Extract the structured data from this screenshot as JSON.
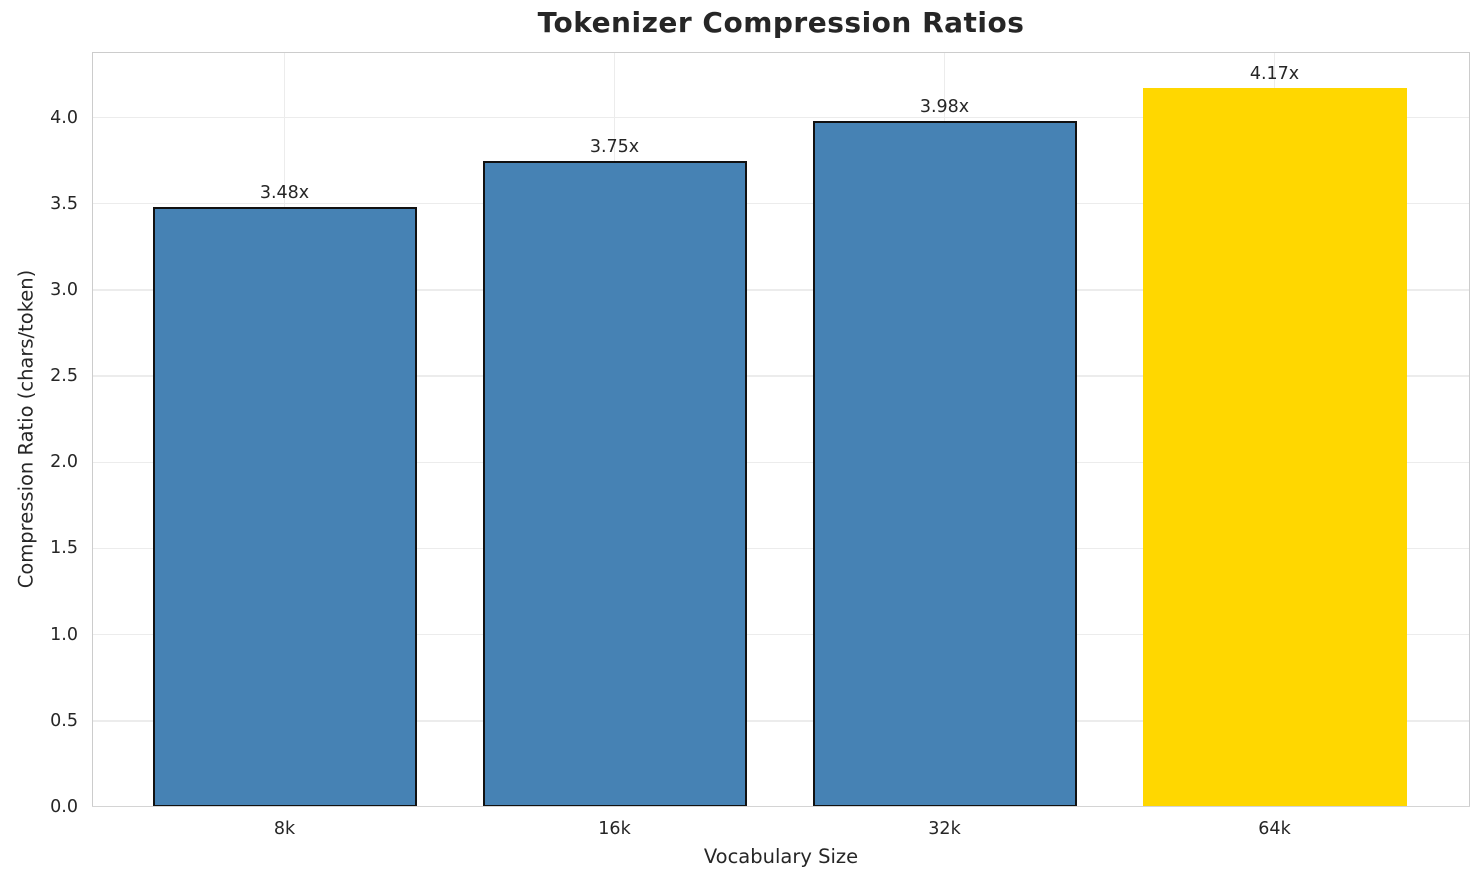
{
  "chart_data": {
    "type": "bar",
    "title": "Tokenizer Compression Ratios",
    "xlabel": "Vocabulary Size",
    "ylabel": "Compression Ratio (chars/token)",
    "categories": [
      "8k",
      "16k",
      "32k",
      "64k"
    ],
    "values": [
      3.48,
      3.75,
      3.98,
      4.17
    ],
    "bar_labels": [
      "3.48x",
      "3.75x",
      "3.98x",
      "4.17x"
    ],
    "bar_colors": [
      "#4682b4",
      "#4682b4",
      "#4682b4",
      "#ffd700"
    ],
    "bar_edge_colors": [
      "#111111",
      "#111111",
      "#111111",
      "none"
    ],
    "ylim": [
      0,
      4.38
    ],
    "yticks": [
      "0.0",
      "0.5",
      "1.0",
      "1.5",
      "2.0",
      "2.5",
      "3.0",
      "3.5",
      "4.0"
    ],
    "grid": true,
    "legend": "none"
  },
  "colors": {
    "bar_default": "#4682b4",
    "bar_highlight": "#ffd700",
    "bar_edge": "#111111",
    "grid": "#ececec",
    "spine": "#cccccc",
    "text": "#262626",
    "background": "#ffffff"
  }
}
